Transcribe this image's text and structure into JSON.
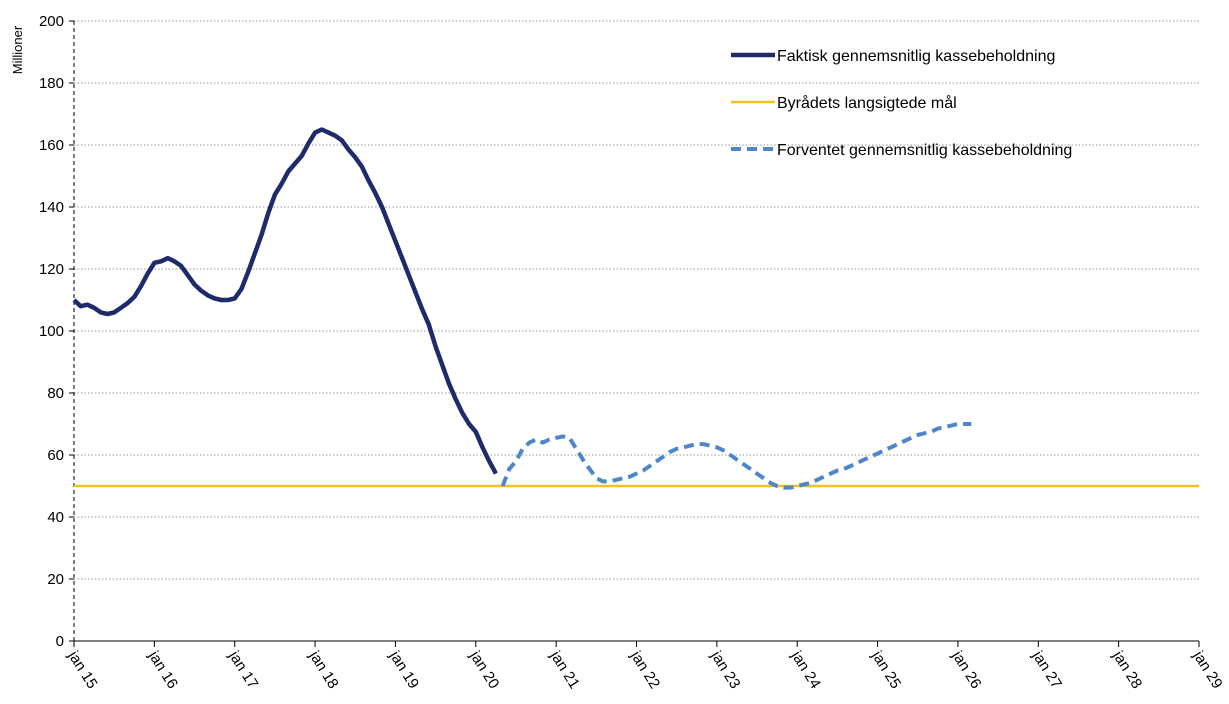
{
  "chart_data": {
    "type": "line",
    "title": "",
    "ylabel": "Millioner",
    "xlabel": "",
    "ylim": [
      0,
      200
    ],
    "yticks": [
      0,
      20,
      40,
      60,
      80,
      100,
      120,
      140,
      160,
      180,
      200
    ],
    "x_categories": [
      "jan 15",
      "jan 16",
      "jan 17",
      "jan 18",
      "jan 19",
      "jan 20",
      "jan 21",
      "jan 22",
      "jan 23",
      "jan 24",
      "jan 25",
      "jan 26",
      "jan 27",
      "jan 28",
      "jan 29"
    ],
    "grid": "horizontal dotted",
    "legend_position": "top-right",
    "series": [
      {
        "name": "Faktisk gennemsnitlig kassebeholdning",
        "color": "#1f2a6b",
        "style": "solid-thick",
        "points": [
          [
            "jan 15",
            110
          ],
          [
            "feb 15",
            108
          ],
          [
            "mar 15",
            108.5
          ],
          [
            "apr 15",
            107.5
          ],
          [
            "maj 15",
            106
          ],
          [
            "jun 15",
            105.5
          ],
          [
            "jul 15",
            106
          ],
          [
            "aug 15",
            107.5
          ],
          [
            "sep 15",
            109
          ],
          [
            "okt 15",
            111
          ],
          [
            "nov 15",
            114.5
          ],
          [
            "dec 15",
            118.5
          ],
          [
            "jan 16",
            122
          ],
          [
            "feb 16",
            122.5
          ],
          [
            "mar 16",
            123.5
          ],
          [
            "apr 16",
            122.5
          ],
          [
            "maj 16",
            121
          ],
          [
            "jun 16",
            118
          ],
          [
            "jul 16",
            115
          ],
          [
            "aug 16",
            113
          ],
          [
            "sep 16",
            111.5
          ],
          [
            "okt 16",
            110.5
          ],
          [
            "nov 16",
            110
          ],
          [
            "dec 16",
            110
          ],
          [
            "jan 17",
            110.5
          ],
          [
            "feb 17",
            113.5
          ],
          [
            "mar 17",
            119
          ],
          [
            "apr 17",
            125
          ],
          [
            "maj 17",
            131
          ],
          [
            "jun 17",
            138
          ],
          [
            "jul 17",
            144
          ],
          [
            "aug 17",
            147.5
          ],
          [
            "sep 17",
            151.5
          ],
          [
            "okt 17",
            154
          ],
          [
            "nov 17",
            156.5
          ],
          [
            "dec 17",
            160.5
          ],
          [
            "jan 18",
            164
          ],
          [
            "feb 18",
            165
          ],
          [
            "mar 18",
            164
          ],
          [
            "apr 18",
            163
          ],
          [
            "maj 18",
            161.5
          ],
          [
            "jun 18",
            158.5
          ],
          [
            "jul 18",
            156
          ],
          [
            "aug 18",
            153
          ],
          [
            "sep 18",
            148.5
          ],
          [
            "okt 18",
            144.5
          ],
          [
            "nov 18",
            140
          ],
          [
            "dec 18",
            134.5
          ],
          [
            "jan 19",
            129
          ],
          [
            "feb 19",
            123.5
          ],
          [
            "mar 19",
            118
          ],
          [
            "apr 19",
            112.5
          ],
          [
            "maj 19",
            107
          ],
          [
            "jun 19",
            102
          ],
          [
            "jul 19",
            95
          ],
          [
            "aug 19",
            89
          ],
          [
            "sep 19",
            83
          ],
          [
            "okt 19",
            78
          ],
          [
            "nov 19",
            73.5
          ],
          [
            "dec 19",
            70
          ],
          [
            "jan 20",
            67.5
          ],
          [
            "feb 20",
            62.5
          ],
          [
            "mar 20",
            58
          ],
          [
            "apr 20",
            54
          ]
        ]
      },
      {
        "name": "Byrådets langsigtede mål",
        "color": "#f5c11e",
        "style": "solid-thin",
        "points": [
          [
            "jan 15",
            50
          ],
          [
            "jan 29",
            50
          ]
        ]
      },
      {
        "name": "Forventet gennemsnitlig kassebeholdning",
        "color": "#4f86c9",
        "style": "dashed",
        "points": [
          [
            "maj 20",
            50
          ],
          [
            "jun 20",
            55.5
          ],
          [
            "jul 20",
            58
          ],
          [
            "aug 20",
            62
          ],
          [
            "sep 20",
            64
          ],
          [
            "okt 20",
            65
          ],
          [
            "nov 20",
            64
          ],
          [
            "dec 20",
            65
          ],
          [
            "jan 21",
            65.5
          ],
          [
            "feb 21",
            66
          ],
          [
            "mar 21",
            65.5
          ],
          [
            "apr 21",
            62
          ],
          [
            "maj 21",
            58.5
          ],
          [
            "jun 21",
            55.5
          ],
          [
            "jul 21",
            52.5
          ],
          [
            "aug 21",
            51.5
          ],
          [
            "sep 21",
            51.5
          ],
          [
            "okt 21",
            52
          ],
          [
            "nov 21",
            52.5
          ],
          [
            "dec 21",
            53
          ],
          [
            "jan 22",
            54
          ],
          [
            "feb 22",
            55
          ],
          [
            "mar 22",
            56.5
          ],
          [
            "apr 22",
            58
          ],
          [
            "maj 22",
            59.5
          ],
          [
            "jun 22",
            61
          ],
          [
            "jul 22",
            62
          ],
          [
            "aug 22",
            62.5
          ],
          [
            "sep 22",
            63
          ],
          [
            "okt 22",
            63.5
          ],
          [
            "nov 22",
            63.5
          ],
          [
            "dec 22",
            63
          ],
          [
            "jan 23",
            62.5
          ],
          [
            "feb 23",
            61.5
          ],
          [
            "mar 23",
            60
          ],
          [
            "apr 23",
            58.5
          ],
          [
            "maj 23",
            57
          ],
          [
            "jun 23",
            55.5
          ],
          [
            "jul 23",
            54
          ],
          [
            "aug 23",
            52.5
          ],
          [
            "sep 23",
            51
          ],
          [
            "okt 23",
            50
          ],
          [
            "nov 23",
            49.5
          ],
          [
            "dec 23",
            49.5
          ],
          [
            "jan 24",
            50
          ],
          [
            "feb 24",
            50.5
          ],
          [
            "mar 24",
            51
          ],
          [
            "apr 24",
            52
          ],
          [
            "maj 24",
            53
          ],
          [
            "jun 24",
            54
          ],
          [
            "jul 24",
            55
          ],
          [
            "aug 24",
            55.5
          ],
          [
            "sep 24",
            56.5
          ],
          [
            "okt 24",
            57.5
          ],
          [
            "nov 24",
            58.5
          ],
          [
            "dec 24",
            59.5
          ],
          [
            "jan 25",
            60.5
          ],
          [
            "feb 25",
            61.5
          ],
          [
            "mar 25",
            62.5
          ],
          [
            "apr 25",
            63.5
          ],
          [
            "maj 25",
            64.5
          ],
          [
            "jun 25",
            65.5
          ],
          [
            "jul 25",
            66.5
          ],
          [
            "aug 25",
            67
          ],
          [
            "sep 25",
            67.5
          ],
          [
            "okt 25",
            68.5
          ],
          [
            "nov 25",
            69
          ],
          [
            "dec 25",
            69.5
          ],
          [
            "jan 26",
            70
          ],
          [
            "feb 26",
            70
          ],
          [
            "mar 26",
            70
          ]
        ]
      }
    ]
  }
}
